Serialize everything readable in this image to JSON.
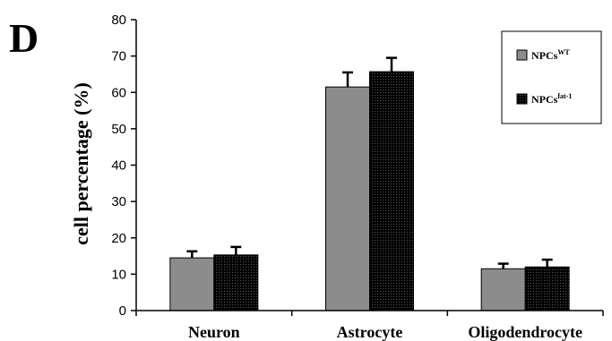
{
  "panel_label": "D",
  "colors": {
    "bar_wt": "#8c8c8c",
    "bar_fat1": "#000000",
    "axis": "#000000",
    "background": "#ffffff"
  },
  "legend": {
    "placement": "top-right",
    "items": [
      {
        "base": "NPCs",
        "sup": "WT"
      },
      {
        "base": "NPCs",
        "sup": "fat-1"
      }
    ]
  },
  "chart_data": {
    "type": "bar",
    "title": "",
    "xlabel": "",
    "ylabel": "cell percentage (%)",
    "ylim": [
      0,
      80
    ],
    "yticks": [
      0,
      10,
      20,
      30,
      40,
      50,
      60,
      70,
      80
    ],
    "categories": [
      "Neuron",
      "Astrocyte",
      "Oligodendrocyte"
    ],
    "series": [
      {
        "name": "NPCsWT",
        "values": [
          14.5,
          61.5,
          11.5
        ],
        "errors": [
          1.8,
          4.0,
          1.4
        ],
        "pattern": "solid gray"
      },
      {
        "name": "NPCsfat-1",
        "values": [
          15.3,
          65.7,
          12.0
        ],
        "errors": [
          2.2,
          3.8,
          2.0
        ],
        "pattern": "black stipple"
      }
    ],
    "grid": false,
    "error_bars": "upper"
  }
}
